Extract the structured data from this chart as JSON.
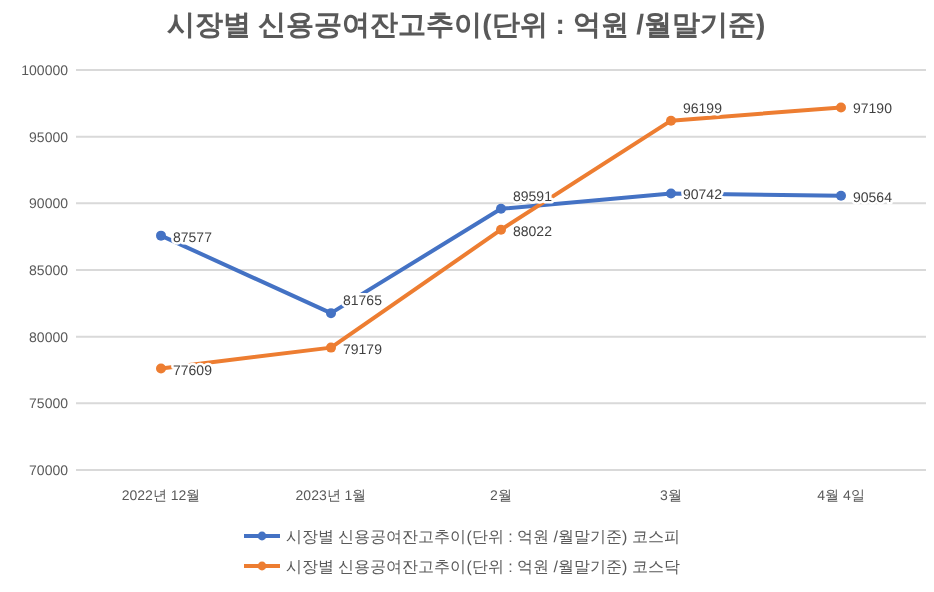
{
  "chart_data": {
    "type": "line",
    "title": "시장별 신용공여잔고추이(단위 : 억원 /월말기준)",
    "categories": [
      "2022년 12월",
      "2023년 1월",
      "2월",
      "3월",
      "4월 4일"
    ],
    "series": [
      {
        "name": "시장별 신용공여잔고추이(단위 : 억원 /월말기준) 코스피",
        "color": "#4472c4",
        "values": [
          87577,
          81765,
          89591,
          90742,
          90564
        ]
      },
      {
        "name": "시장별 신용공여잔고추이(단위 : 억원 /월말기준) 코스닥",
        "color": "#ed7d31",
        "values": [
          77609,
          79179,
          88022,
          96199,
          97190
        ]
      }
    ],
    "ylim": [
      70000,
      100000
    ],
    "yticks": [
      70000,
      75000,
      80000,
      85000,
      90000,
      95000,
      100000
    ],
    "grid": "y",
    "legend": "bottom",
    "marker": "circle",
    "line_style": "solid",
    "data_labels": true
  }
}
